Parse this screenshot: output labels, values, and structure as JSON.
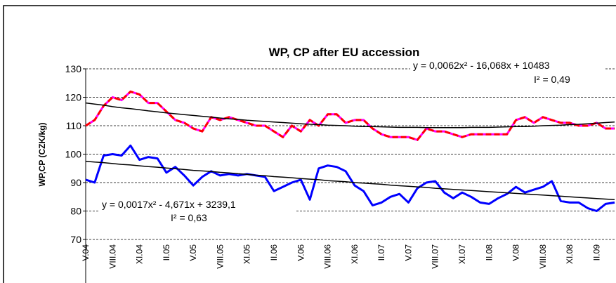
{
  "chart_data": {
    "type": "line",
    "title": "WP, CP after EU accession",
    "y_label": "WP,CP (CZK/kg)",
    "categories": [
      "V.04",
      null,
      null,
      "VIII.04",
      null,
      null,
      "XI.04",
      null,
      null,
      "II.05",
      null,
      null,
      "V.05",
      null,
      null,
      "VIII.05",
      null,
      null,
      "XI.05",
      null,
      null,
      "II.06",
      null,
      null,
      "V.06",
      null,
      null,
      "VIII.06",
      null,
      null,
      "XI.06",
      null,
      null,
      "II.07",
      null,
      null,
      "V.07",
      null,
      null,
      "VIII.07",
      null,
      null,
      "XI.07",
      null,
      null,
      "II.08",
      null,
      null,
      "V.08",
      null,
      null,
      "VIII.08",
      null,
      null,
      "XI.08",
      null,
      null,
      "II.09",
      null,
      null
    ],
    "series": [
      {
        "color": "#ff0000",
        "underlay_color": "#ff00ff",
        "dashed": true,
        "width": 3,
        "values": [
          110,
          112,
          117,
          120,
          119,
          122,
          121,
          118,
          118,
          115,
          112,
          111,
          109,
          108,
          113,
          112,
          113,
          112,
          111,
          110,
          110,
          108,
          106,
          110,
          108,
          112,
          110,
          114,
          114,
          111,
          112,
          112,
          109,
          107,
          106,
          106,
          106,
          105,
          109,
          108,
          108,
          107,
          106,
          107,
          107,
          107,
          107,
          107,
          112,
          113,
          111,
          113,
          112,
          111,
          111,
          110,
          110,
          111,
          109,
          109
        ]
      },
      {
        "color": "#0000ff",
        "width": 3,
        "values": [
          91,
          90,
          99.5,
          100,
          99.5,
          103,
          98,
          99,
          98.5,
          93.5,
          95.5,
          92.5,
          89,
          92,
          94,
          92.5,
          93,
          92.5,
          93,
          92.5,
          92,
          87,
          88.5,
          90,
          91,
          84,
          95,
          96,
          95.5,
          94,
          89,
          87,
          82,
          83,
          85,
          86,
          83,
          88,
          90,
          90.5,
          86.5,
          84.5,
          86.5,
          85,
          83,
          82.5,
          84.5,
          86,
          88.5,
          86.5,
          87.5,
          88.5,
          90.5,
          83.5,
          83,
          83,
          81,
          80,
          82.5,
          83
        ]
      },
      {
        "color": "#000000",
        "width": 1.5,
        "values": [
          118.0,
          117.6,
          117.2,
          116.7,
          116.3,
          116.0,
          115.6,
          115.2,
          114.9,
          114.5,
          114.2,
          113.9,
          113.6,
          113.3,
          113.0,
          112.7,
          112.4,
          112.2,
          111.9,
          111.7,
          111.5,
          111.3,
          111.1,
          110.9,
          110.7,
          110.5,
          110.4,
          110.2,
          110.1,
          110.0,
          109.8,
          109.7,
          109.7,
          109.6,
          109.5,
          109.4,
          109.4,
          109.4,
          109.3,
          109.3,
          109.3,
          109.3,
          109.3,
          109.4,
          109.4,
          109.4,
          109.5,
          109.6,
          109.7,
          109.7,
          109.8,
          110.0,
          110.1,
          110.2,
          110.4,
          110.5,
          110.7,
          110.9,
          111.1,
          111.3
        ]
      },
      {
        "color": "#000000",
        "width": 1.5,
        "values": [
          97.5,
          97.2,
          97.0,
          96.7,
          96.4,
          96.2,
          95.9,
          95.6,
          95.4,
          95.1,
          94.9,
          94.6,
          94.3,
          94.1,
          93.9,
          93.6,
          93.4,
          93.1,
          92.9,
          92.6,
          92.4,
          92.1,
          91.9,
          91.7,
          91.4,
          91.2,
          91.0,
          90.7,
          90.5,
          90.3,
          90.0,
          89.8,
          89.6,
          89.4,
          89.1,
          88.9,
          88.7,
          88.5,
          88.3,
          88.0,
          87.8,
          87.6,
          87.4,
          87.2,
          87.0,
          86.8,
          86.6,
          86.4,
          86.2,
          86.0,
          85.8,
          85.6,
          85.4,
          85.2,
          85.0,
          84.8,
          84.6,
          84.4,
          84.2,
          84.0
        ]
      }
    ],
    "annotations": [
      "y = 0,0062x² - 16,068x + 10483",
      "I² = 0,49",
      "y = 0,0017x² - 4,671x + 3239,1",
      "I² = 0,63"
    ],
    "ylim": [
      70,
      130
    ],
    "yticks": [
      70,
      80,
      90,
      100,
      110,
      120,
      130
    ],
    "grid": true
  }
}
